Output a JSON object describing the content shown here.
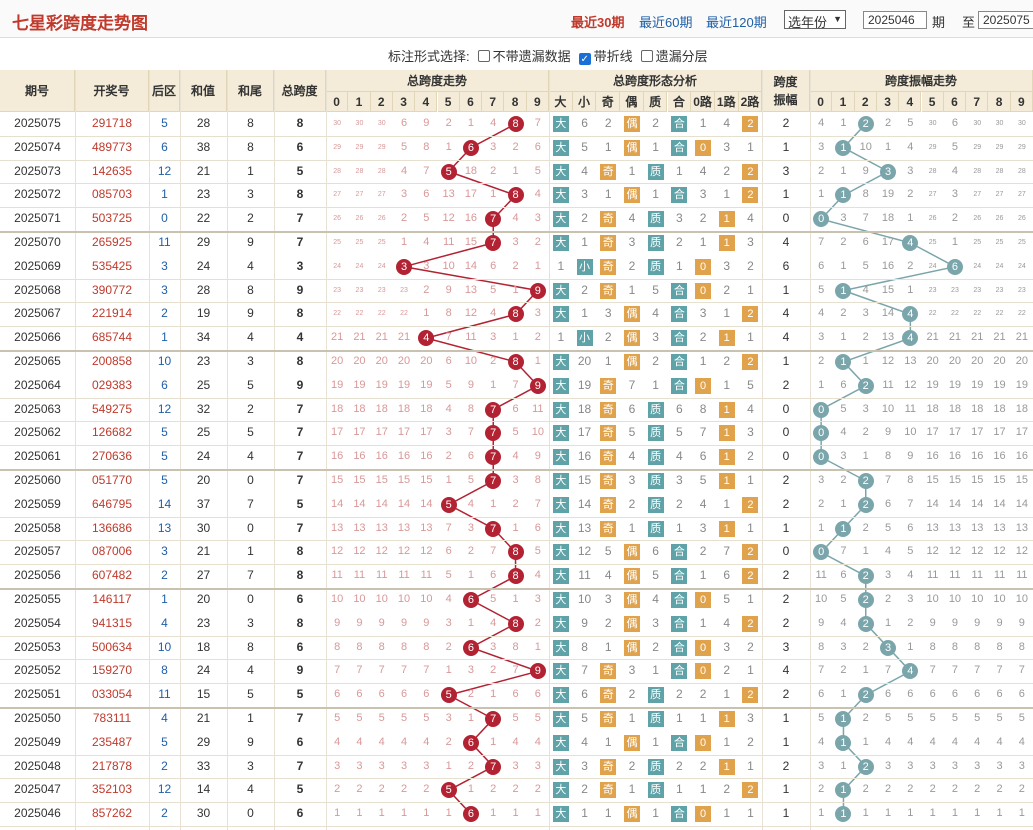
{
  "header": {
    "title": "七星彩跨度走势图",
    "range_links": [
      "最近30期",
      "最近60期",
      "最近120期"
    ],
    "year_select": "选年份",
    "from_value": "2025046",
    "period_label": "期",
    "to_label": "至",
    "to_value": "2025075"
  },
  "options": {
    "label": "标注形式选择:",
    "items": [
      {
        "label": "不带遗漏数据",
        "checked": false
      },
      {
        "label": "带折线",
        "checked": true
      },
      {
        "label": "遗漏分层",
        "checked": false
      }
    ]
  },
  "table": {
    "headers": {
      "issue": "期号",
      "sort_icon": "sort-arrows-icon",
      "number": "开奖号",
      "back": "后区",
      "sum": "和值",
      "tail": "和尾",
      "span": "总跨度",
      "trend": "总跨度走势",
      "form": "总跨度形态分析",
      "amp": "跨度振幅",
      "amp_trend": "跨度振幅走势"
    },
    "digits": [
      "0",
      "1",
      "2",
      "3",
      "4",
      "5",
      "6",
      "7",
      "8",
      "9"
    ],
    "form_headers": [
      "大",
      "小",
      "奇",
      "偶",
      "质",
      "合",
      "0路",
      "1路",
      "2路"
    ],
    "labels": {
      "big": "大",
      "small": "小",
      "odd": "奇",
      "even": "偶",
      "prime": "质",
      "comp": "合",
      "r0": "0",
      "r1": "1",
      "r2": "2"
    },
    "rows": [
      {
        "issue": "2025075",
        "number": "291718",
        "back": "5",
        "sum": "28",
        "tail": "8",
        "span": "8",
        "amp": "2"
      },
      {
        "issue": "2025074",
        "number": "489773",
        "back": "6",
        "sum": "38",
        "tail": "8",
        "span": "6",
        "amp": "1"
      },
      {
        "issue": "2025073",
        "number": "142635",
        "back": "12",
        "sum": "21",
        "tail": "1",
        "span": "5",
        "amp": "3"
      },
      {
        "issue": "2025072",
        "number": "085703",
        "back": "1",
        "sum": "23",
        "tail": "3",
        "span": "8",
        "amp": "1"
      },
      {
        "issue": "2025071",
        "number": "503725",
        "back": "0",
        "sum": "22",
        "tail": "2",
        "span": "7",
        "amp": "0"
      },
      {
        "issue": "2025070",
        "number": "265925",
        "back": "11",
        "sum": "29",
        "tail": "9",
        "span": "7",
        "amp": "4"
      },
      {
        "issue": "2025069",
        "number": "535425",
        "back": "3",
        "sum": "24",
        "tail": "4",
        "span": "3",
        "amp": "6"
      },
      {
        "issue": "2025068",
        "number": "390772",
        "back": "3",
        "sum": "28",
        "tail": "8",
        "span": "9",
        "amp": "1"
      },
      {
        "issue": "2025067",
        "number": "221914",
        "back": "2",
        "sum": "19",
        "tail": "9",
        "span": "8",
        "amp": "4"
      },
      {
        "issue": "2025066",
        "number": "685744",
        "back": "1",
        "sum": "34",
        "tail": "4",
        "span": "4",
        "amp": "4"
      },
      {
        "issue": "2025065",
        "number": "200858",
        "back": "10",
        "sum": "23",
        "tail": "3",
        "span": "8",
        "amp": "1"
      },
      {
        "issue": "2025064",
        "number": "029383",
        "back": "6",
        "sum": "25",
        "tail": "5",
        "span": "9",
        "amp": "2"
      },
      {
        "issue": "2025063",
        "number": "549275",
        "back": "12",
        "sum": "32",
        "tail": "2",
        "span": "7",
        "amp": "0"
      },
      {
        "issue": "2025062",
        "number": "126682",
        "back": "5",
        "sum": "25",
        "tail": "5",
        "span": "7",
        "amp": "0"
      },
      {
        "issue": "2025061",
        "number": "270636",
        "back": "5",
        "sum": "24",
        "tail": "4",
        "span": "7",
        "amp": "0"
      },
      {
        "issue": "2025060",
        "number": "051770",
        "back": "5",
        "sum": "20",
        "tail": "0",
        "span": "7",
        "amp": "2"
      },
      {
        "issue": "2025059",
        "number": "646795",
        "back": "14",
        "sum": "37",
        "tail": "7",
        "span": "5",
        "amp": "2"
      },
      {
        "issue": "2025058",
        "number": "136686",
        "back": "13",
        "sum": "30",
        "tail": "0",
        "span": "7",
        "amp": "1"
      },
      {
        "issue": "2025057",
        "number": "087006",
        "back": "3",
        "sum": "21",
        "tail": "1",
        "span": "8",
        "amp": "0"
      },
      {
        "issue": "2025056",
        "number": "607482",
        "back": "2",
        "sum": "27",
        "tail": "7",
        "span": "8",
        "amp": "2"
      },
      {
        "issue": "2025055",
        "number": "146117",
        "back": "1",
        "sum": "20",
        "tail": "0",
        "span": "6",
        "amp": "2"
      },
      {
        "issue": "2025054",
        "number": "941315",
        "back": "4",
        "sum": "23",
        "tail": "3",
        "span": "8",
        "amp": "2"
      },
      {
        "issue": "2025053",
        "number": "500634",
        "back": "10",
        "sum": "18",
        "tail": "8",
        "span": "6",
        "amp": "3"
      },
      {
        "issue": "2025052",
        "number": "159270",
        "back": "8",
        "sum": "24",
        "tail": "4",
        "span": "9",
        "amp": "4"
      },
      {
        "issue": "2025051",
        "number": "033054",
        "back": "11",
        "sum": "15",
        "tail": "5",
        "span": "5",
        "amp": "2"
      },
      {
        "issue": "2025050",
        "number": "783111",
        "back": "4",
        "sum": "21",
        "tail": "1",
        "span": "7",
        "amp": "1"
      },
      {
        "issue": "2025049",
        "number": "235487",
        "back": "5",
        "sum": "29",
        "tail": "9",
        "span": "6",
        "amp": "1"
      },
      {
        "issue": "2025048",
        "number": "217878",
        "back": "2",
        "sum": "33",
        "tail": "3",
        "span": "7",
        "amp": "2"
      },
      {
        "issue": "2025047",
        "number": "352103",
        "back": "12",
        "sum": "14",
        "tail": "4",
        "span": "5",
        "amp": "1"
      },
      {
        "issue": "2025046",
        "number": "857262",
        "back": "2",
        "sum": "30",
        "tail": "0",
        "span": "6",
        "amp": "1"
      }
    ]
  },
  "colors": {
    "title": "#c0392b",
    "link": "#1f5fa8",
    "ball_span": "#b22232",
    "ball_amp": "#7aa6ab",
    "badge_teal": "#5fa3a8",
    "badge_orange": "#e0a24a",
    "header_bg": "#f4ecd9"
  }
}
